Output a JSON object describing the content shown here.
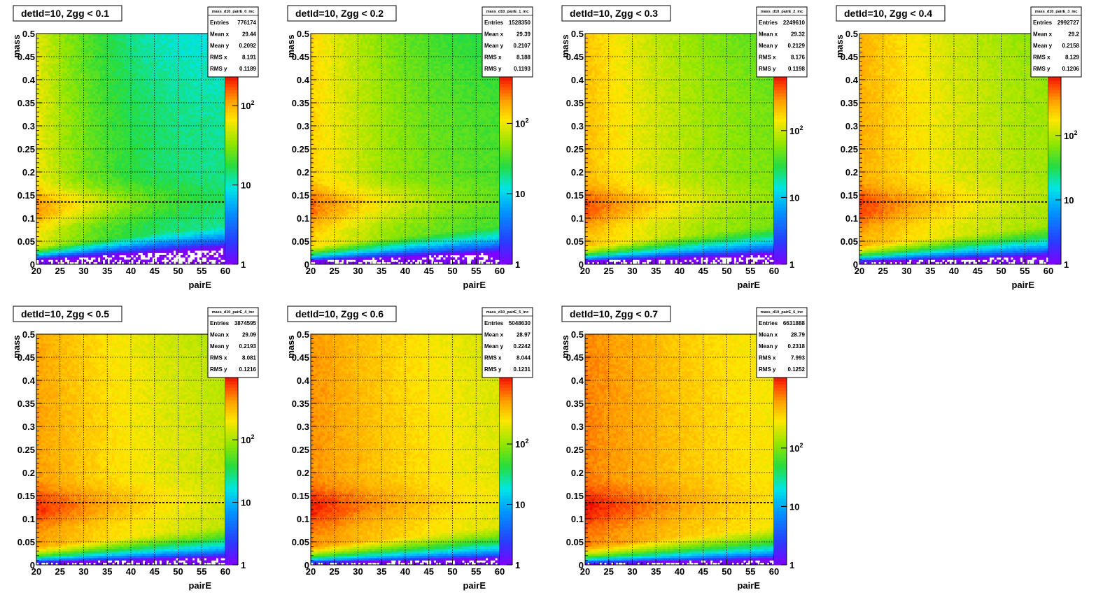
{
  "chart_data": [
    {
      "type": "heatmap",
      "title": "detId=10, Zgg < 0.1",
      "xlabel": "pairE",
      "ylabel": "mass",
      "xlim": [
        20,
        60
      ],
      "ylim": [
        0,
        0.5
      ],
      "x_ticks": [
        "20",
        "25",
        "30",
        "35",
        "40",
        "45",
        "50",
        "55",
        "60"
      ],
      "y_ticks": [
        "0",
        "0.05",
        "0.1",
        "0.15",
        "0.2",
        "0.25",
        "0.3",
        "0.35",
        "0.4",
        "0.45",
        "0.5"
      ],
      "grid": true,
      "z_scale": "log",
      "palette_labels": [
        {
          "mant": "1",
          "exp": "",
          "value": 1
        },
        {
          "mant": "10",
          "exp": "",
          "value": 10
        },
        {
          "mant": "10",
          "exp": "2",
          "value": 100
        }
      ],
      "z_max": 250,
      "reference_line_y": 0.135,
      "stats": {
        "name": "mass_d10_pairE_0_inc",
        "rows": [
          [
            "Entries",
            "776174"
          ],
          [
            "Mean x",
            "29.44"
          ],
          [
            "Mean y",
            "0.2092"
          ],
          [
            "RMS x",
            "8.191"
          ],
          [
            "RMS y",
            "0.1189"
          ]
        ]
      }
    },
    {
      "type": "heatmap",
      "title": "detId=10, Zgg < 0.2",
      "xlabel": "pairE",
      "ylabel": "mass",
      "xlim": [
        20,
        60
      ],
      "ylim": [
        0,
        0.5
      ],
      "x_ticks": [
        "20",
        "25",
        "30",
        "35",
        "40",
        "45",
        "50",
        "55",
        "60"
      ],
      "y_ticks": [
        "0",
        "0.05",
        "0.1",
        "0.15",
        "0.2",
        "0.25",
        "0.3",
        "0.35",
        "0.4",
        "0.45",
        "0.5"
      ],
      "grid": true,
      "z_scale": "log",
      "palette_labels": [
        {
          "mant": "1",
          "exp": "",
          "value": 1
        },
        {
          "mant": "10",
          "exp": "",
          "value": 10
        },
        {
          "mant": "10",
          "exp": "2",
          "value": 100
        }
      ],
      "z_max": 500,
      "reference_line_y": 0.135,
      "stats": {
        "name": "mass_d10_pairE_1_inc",
        "rows": [
          [
            "Entries",
            "1528350"
          ],
          [
            "Mean x",
            "29.39"
          ],
          [
            "Mean y",
            "0.2107"
          ],
          [
            "RMS x",
            "8.188"
          ],
          [
            "RMS y",
            "0.1193"
          ]
        ]
      }
    },
    {
      "type": "heatmap",
      "title": "detId=10, Zgg < 0.3",
      "xlabel": "pairE",
      "ylabel": "mass",
      "xlim": [
        20,
        60
      ],
      "ylim": [
        0,
        0.5
      ],
      "x_ticks": [
        "20",
        "25",
        "30",
        "35",
        "40",
        "45",
        "50",
        "55",
        "60"
      ],
      "y_ticks": [
        "0",
        "0.05",
        "0.1",
        "0.15",
        "0.2",
        "0.25",
        "0.3",
        "0.35",
        "0.4",
        "0.45",
        "0.5"
      ],
      "grid": true,
      "z_scale": "log",
      "palette_labels": [
        {
          "mant": "1",
          "exp": "",
          "value": 1
        },
        {
          "mant": "10",
          "exp": "",
          "value": 10
        },
        {
          "mant": "10",
          "exp": "2",
          "value": 100
        }
      ],
      "z_max": 700,
      "reference_line_y": 0.135,
      "stats": {
        "name": "mass_d10_pairE_2_inc",
        "rows": [
          [
            "Entries",
            "2249610"
          ],
          [
            "Mean x",
            "29.32"
          ],
          [
            "Mean y",
            "0.2129"
          ],
          [
            "RMS x",
            "8.176"
          ],
          [
            "RMS y",
            "0.1198"
          ]
        ]
      }
    },
    {
      "type": "heatmap",
      "title": "detId=10, Zgg < 0.4",
      "xlabel": "pairE",
      "ylabel": "mass",
      "xlim": [
        20,
        60
      ],
      "ylim": [
        0,
        0.5
      ],
      "x_ticks": [
        "20",
        "25",
        "30",
        "35",
        "40",
        "45",
        "50",
        "55",
        "60"
      ],
      "y_ticks": [
        "0",
        "0.05",
        "0.1",
        "0.15",
        "0.2",
        "0.25",
        "0.3",
        "0.35",
        "0.4",
        "0.45",
        "0.5"
      ],
      "grid": true,
      "z_scale": "log",
      "palette_labels": [
        {
          "mant": "1",
          "exp": "",
          "value": 1
        },
        {
          "mant": "10",
          "exp": "",
          "value": 10
        },
        {
          "mant": "10",
          "exp": "2",
          "value": 100
        }
      ],
      "z_max": 900,
      "reference_line_y": 0.135,
      "stats": {
        "name": "mass_d10_pairE_3_inc",
        "rows": [
          [
            "Entries",
            "2992727"
          ],
          [
            "Mean x",
            "29.2"
          ],
          [
            "Mean y",
            "0.2158"
          ],
          [
            "RMS x",
            "8.129"
          ],
          [
            "RMS y",
            "0.1206"
          ]
        ]
      }
    },
    {
      "type": "heatmap",
      "title": "detId=10, Zgg < 0.5",
      "xlabel": "pairE",
      "ylabel": "mass",
      "xlim": [
        20,
        60
      ],
      "ylim": [
        0,
        0.5
      ],
      "x_ticks": [
        "20",
        "25",
        "30",
        "35",
        "40",
        "45",
        "50",
        "55",
        "60"
      ],
      "y_ticks": [
        "0",
        "0.05",
        "0.1",
        "0.15",
        "0.2",
        "0.25",
        "0.3",
        "0.35",
        "0.4",
        "0.45",
        "0.5"
      ],
      "grid": true,
      "z_scale": "log",
      "palette_labels": [
        {
          "mant": "1",
          "exp": "",
          "value": 1
        },
        {
          "mant": "10",
          "exp": "",
          "value": 10
        },
        {
          "mant": "10",
          "exp": "2",
          "value": 100
        }
      ],
      "z_max": 1100,
      "reference_line_y": 0.135,
      "stats": {
        "name": "mass_d10_pairE_4_inc",
        "rows": [
          [
            "Entries",
            "3874595"
          ],
          [
            "Mean x",
            "29.09"
          ],
          [
            "Mean y",
            "0.2193"
          ],
          [
            "RMS x",
            "8.081"
          ],
          [
            "RMS y",
            "0.1216"
          ]
        ]
      }
    },
    {
      "type": "heatmap",
      "title": "detId=10, Zgg < 0.6",
      "xlabel": "pairE",
      "ylabel": "mass",
      "xlim": [
        20,
        60
      ],
      "ylim": [
        0,
        0.5
      ],
      "x_ticks": [
        "20",
        "25",
        "30",
        "35",
        "40",
        "45",
        "50",
        "55",
        "60"
      ],
      "y_ticks": [
        "0",
        "0.05",
        "0.1",
        "0.15",
        "0.2",
        "0.25",
        "0.3",
        "0.35",
        "0.4",
        "0.45",
        "0.5"
      ],
      "grid": true,
      "z_scale": "log",
      "palette_labels": [
        {
          "mant": "1",
          "exp": "",
          "value": 1
        },
        {
          "mant": "10",
          "exp": "",
          "value": 10
        },
        {
          "mant": "10",
          "exp": "2",
          "value": 100
        }
      ],
      "z_max": 1400,
      "reference_line_y": 0.135,
      "stats": {
        "name": "mass_d10_pairE_5_inc",
        "rows": [
          [
            "Entries",
            "5048630"
          ],
          [
            "Mean x",
            "28.97"
          ],
          [
            "Mean y",
            "0.2242"
          ],
          [
            "RMS x",
            "8.044"
          ],
          [
            "RMS y",
            "0.1231"
          ]
        ]
      }
    },
    {
      "type": "heatmap",
      "title": "detId=10, Zgg < 0.7",
      "xlabel": "pairE",
      "ylabel": "mass",
      "xlim": [
        20,
        60
      ],
      "ylim": [
        0,
        0.5
      ],
      "x_ticks": [
        "20",
        "25",
        "30",
        "35",
        "40",
        "45",
        "50",
        "55",
        "60"
      ],
      "y_ticks": [
        "0",
        "0.05",
        "0.1",
        "0.15",
        "0.2",
        "0.25",
        "0.3",
        "0.35",
        "0.4",
        "0.45",
        "0.5"
      ],
      "grid": true,
      "z_scale": "log",
      "palette_labels": [
        {
          "mant": "1",
          "exp": "",
          "value": 1
        },
        {
          "mant": "10",
          "exp": "",
          "value": 10
        },
        {
          "mant": "10",
          "exp": "2",
          "value": 100
        }
      ],
      "z_max": 1800,
      "reference_line_y": 0.135,
      "stats": {
        "name": "mass_d10_pairE_6_inc",
        "rows": [
          [
            "Entries",
            "6631888"
          ],
          [
            "Mean x",
            "28.79"
          ],
          [
            "Mean y",
            "0.2318"
          ],
          [
            "RMS x",
            "7.993"
          ],
          [
            "RMS y",
            "0.1252"
          ]
        ]
      }
    }
  ]
}
